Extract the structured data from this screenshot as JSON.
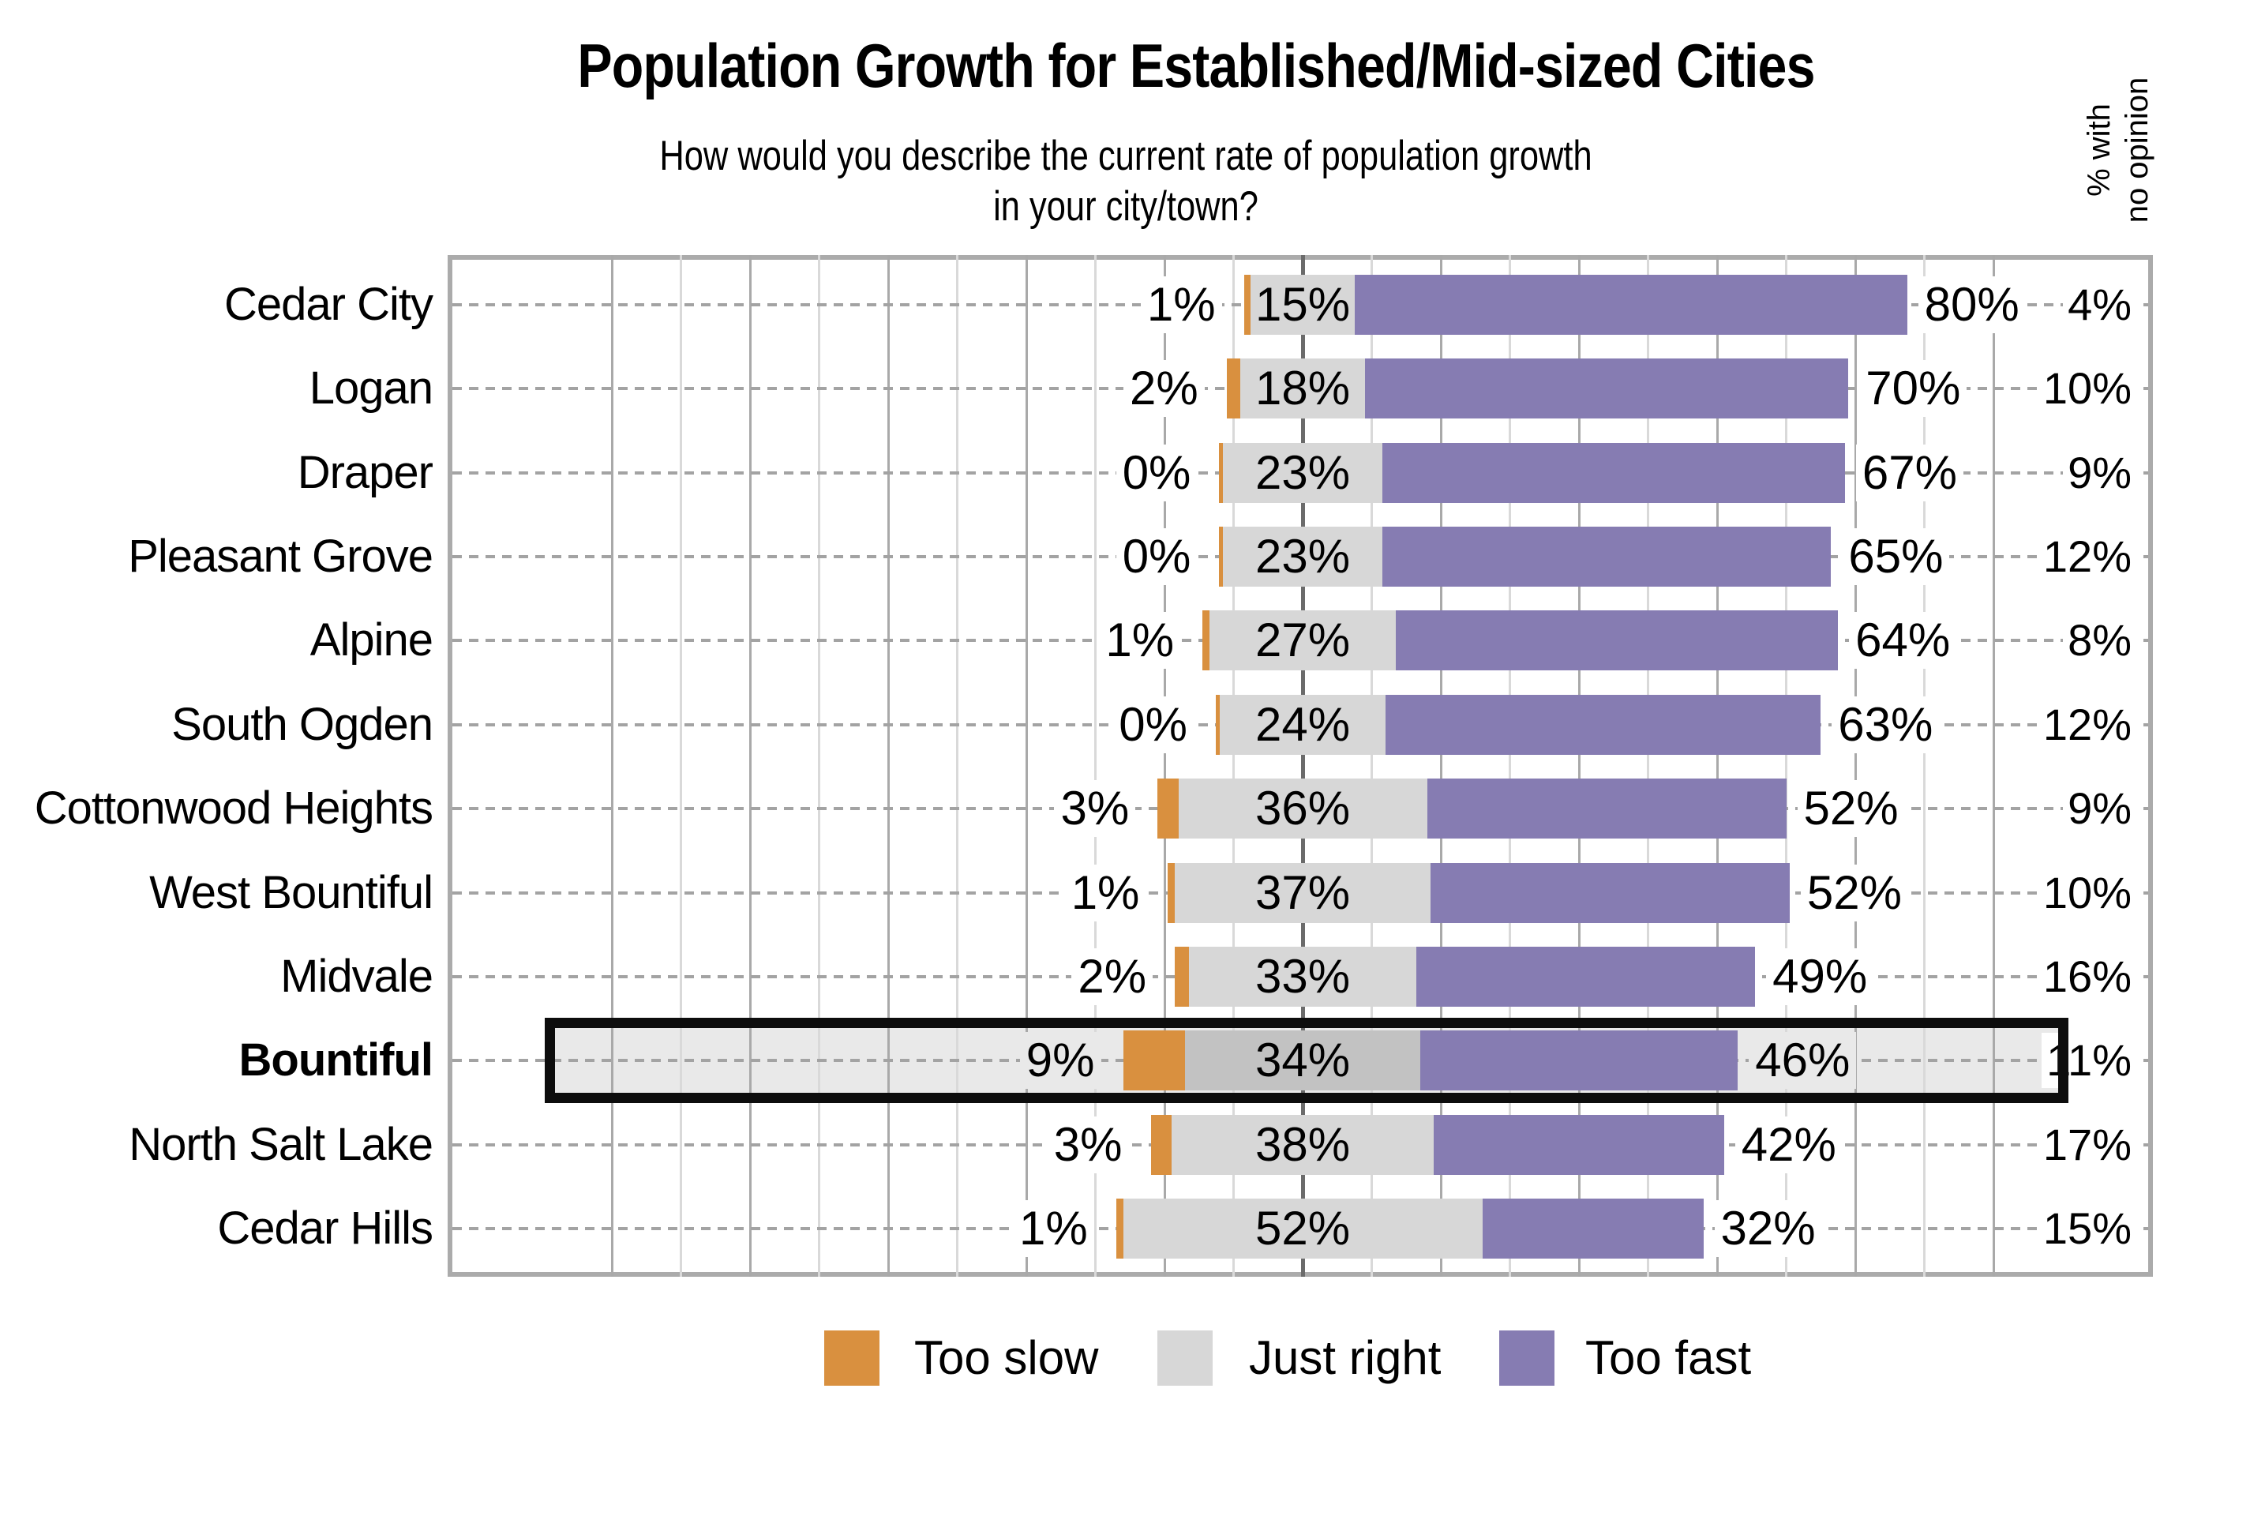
{
  "header": {
    "title": "Population Growth for Established/Mid-sized Cities",
    "subtitle_line1": "How would you describe the current rate of population growth",
    "subtitle_line2": "in your city/town?",
    "right_column_header_line1": "% with",
    "right_column_header_line2": "no opinion"
  },
  "legend": {
    "items": [
      {
        "label": "Too slow",
        "color": "#D9903F"
      },
      {
        "label": "Just right",
        "color": "#D7D7D7"
      },
      {
        "label": "Too fast",
        "color": "#867CB2"
      }
    ]
  },
  "chart_data": {
    "type": "bar",
    "orientation": "horizontal-diverging-stacked",
    "title": "Population Growth for Established/Mid-sized Cities",
    "subtitle": "How would you describe the current rate of population growth in your city/town?",
    "categories": [
      "Cedar City",
      "Logan",
      "Draper",
      "Pleasant Grove",
      "Alpine",
      "South Ogden",
      "Cottonwood Heights",
      "West Bountiful",
      "Midvale",
      "Bountiful",
      "North Salt Lake",
      "Cedar Hills"
    ],
    "series": [
      {
        "name": "Too slow",
        "color": "#D9903F",
        "values": [
          1,
          2,
          0,
          0,
          1,
          0,
          3,
          1,
          2,
          9,
          3,
          1
        ]
      },
      {
        "name": "Just right",
        "color": "#D7D7D7",
        "values": [
          15,
          18,
          23,
          23,
          27,
          24,
          36,
          37,
          33,
          34,
          38,
          52
        ]
      },
      {
        "name": "Too fast",
        "color": "#867CB2",
        "values": [
          80,
          70,
          67,
          65,
          64,
          63,
          52,
          52,
          49,
          46,
          42,
          32
        ]
      }
    ],
    "no_opinion_column": {
      "header": "% with no opinion",
      "values": [
        4,
        10,
        9,
        12,
        8,
        12,
        9,
        10,
        16,
        11,
        17,
        15
      ]
    },
    "highlighted_category": "Bountiful",
    "highlighted_index": 9,
    "value_suffix": "%",
    "axis": {
      "neutral_centered_on_zero": true,
      "gridline_step_pct": 10,
      "gridline_range_pct": [
        -100,
        100
      ],
      "grid_on": true
    },
    "legend_position": "bottom",
    "colors": {
      "too_slow": "#D9903F",
      "just_right": "#D7D7D7",
      "just_right_highlighted": "#C2C2C2",
      "too_fast": "#867CB2",
      "highlight_fill": "#E9E9E9",
      "highlight_border": "#0D0D0D",
      "grid_light": "#D9D9D9",
      "grid_mid": "#A9A9A9",
      "zero_axis": "#6B6B6B",
      "plot_border": "#ABABAB",
      "leader_dash": "#A3A3A3"
    }
  }
}
